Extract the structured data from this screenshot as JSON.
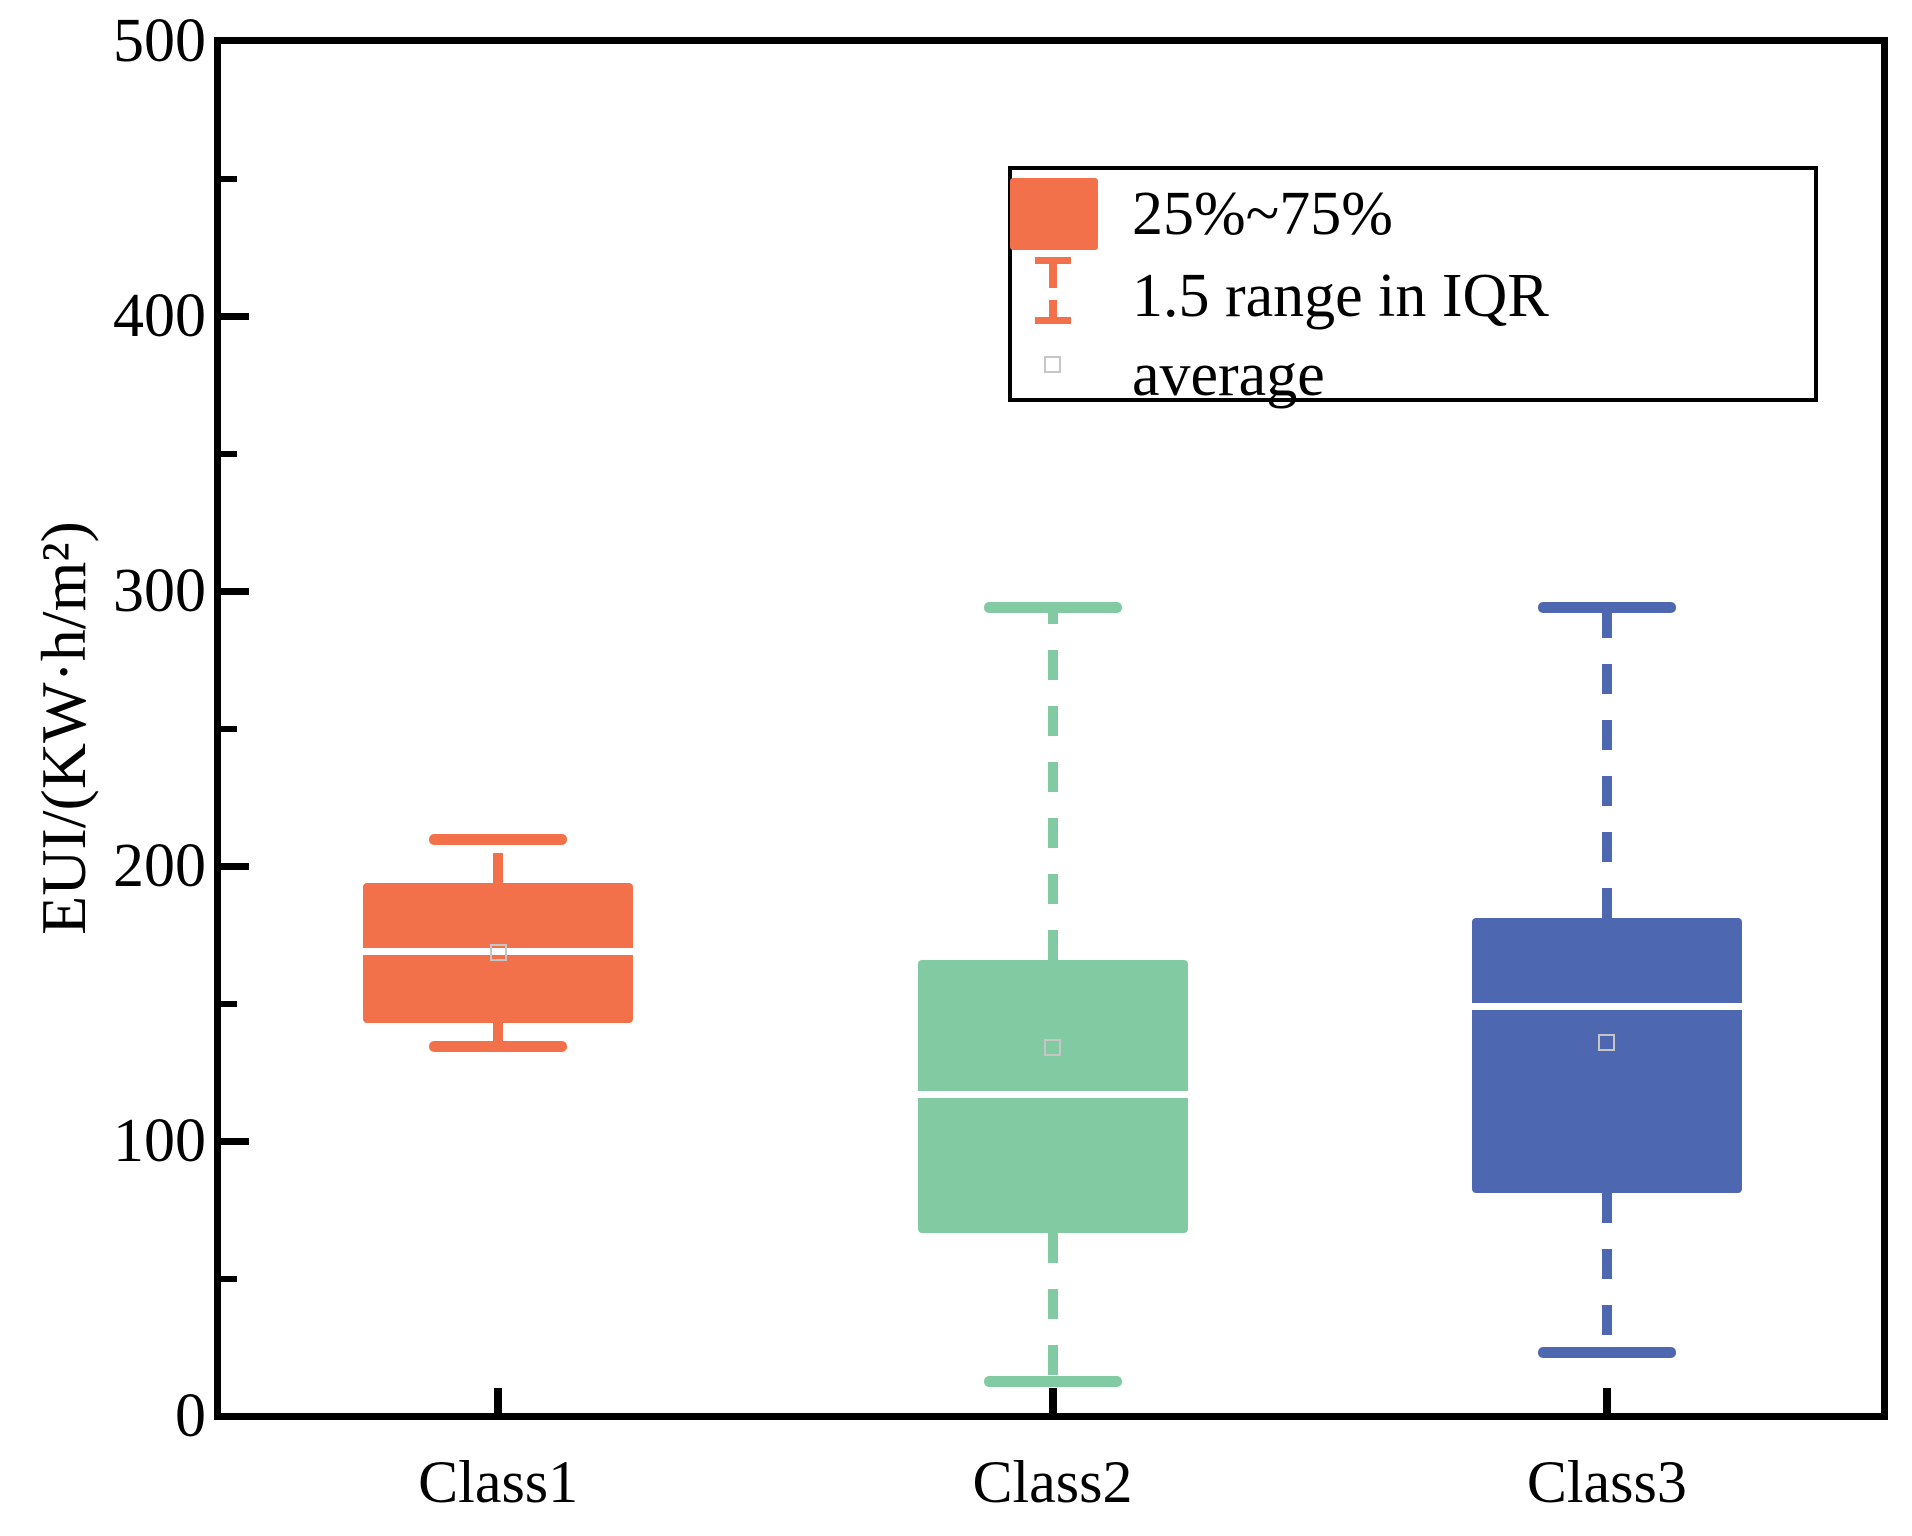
{
  "chart_data": {
    "type": "box",
    "title": "",
    "xlabel": "",
    "ylabel": "EUI/(KW·h/m²)",
    "ylim": [
      0,
      500
    ],
    "y_major_step": 100,
    "y_minor_step": 50,
    "y_tick_labels": [
      "0",
      "100",
      "200",
      "300",
      "400",
      "500"
    ],
    "grid": "off",
    "legend_position": "upper-right-inside",
    "categories": [
      "Class1",
      "Class2",
      "Class3"
    ],
    "series": [
      {
        "name": "Class1",
        "color": "#F2714A",
        "whisker_low": 134.5,
        "q1": 143,
        "median": 169,
        "mean": 168.5,
        "q3": 194,
        "whisker_high": 209.5
      },
      {
        "name": "Class2",
        "color": "#82CAA2",
        "whisker_low": 12.5,
        "q1": 66.5,
        "median": 117,
        "mean": 134,
        "q3": 166,
        "whisker_high": 294
      },
      {
        "name": "Class3",
        "color": "#4D68B0",
        "whisker_low": 23,
        "q1": 81,
        "median": 149,
        "mean": 136,
        "q3": 181,
        "whisker_high": 294
      }
    ],
    "legend": {
      "items": [
        {
          "symbol": "box-swatch",
          "label": "25%~75%"
        },
        {
          "symbol": "whisker-errorbar",
          "label": "1.5 range in IQR"
        },
        {
          "symbol": "open-square",
          "label": "average"
        }
      ]
    },
    "marker_colors": {
      "mean_marker_border": "#C6C6C6",
      "median_line": "#FFFFFF",
      "axis": "#000000"
    }
  }
}
